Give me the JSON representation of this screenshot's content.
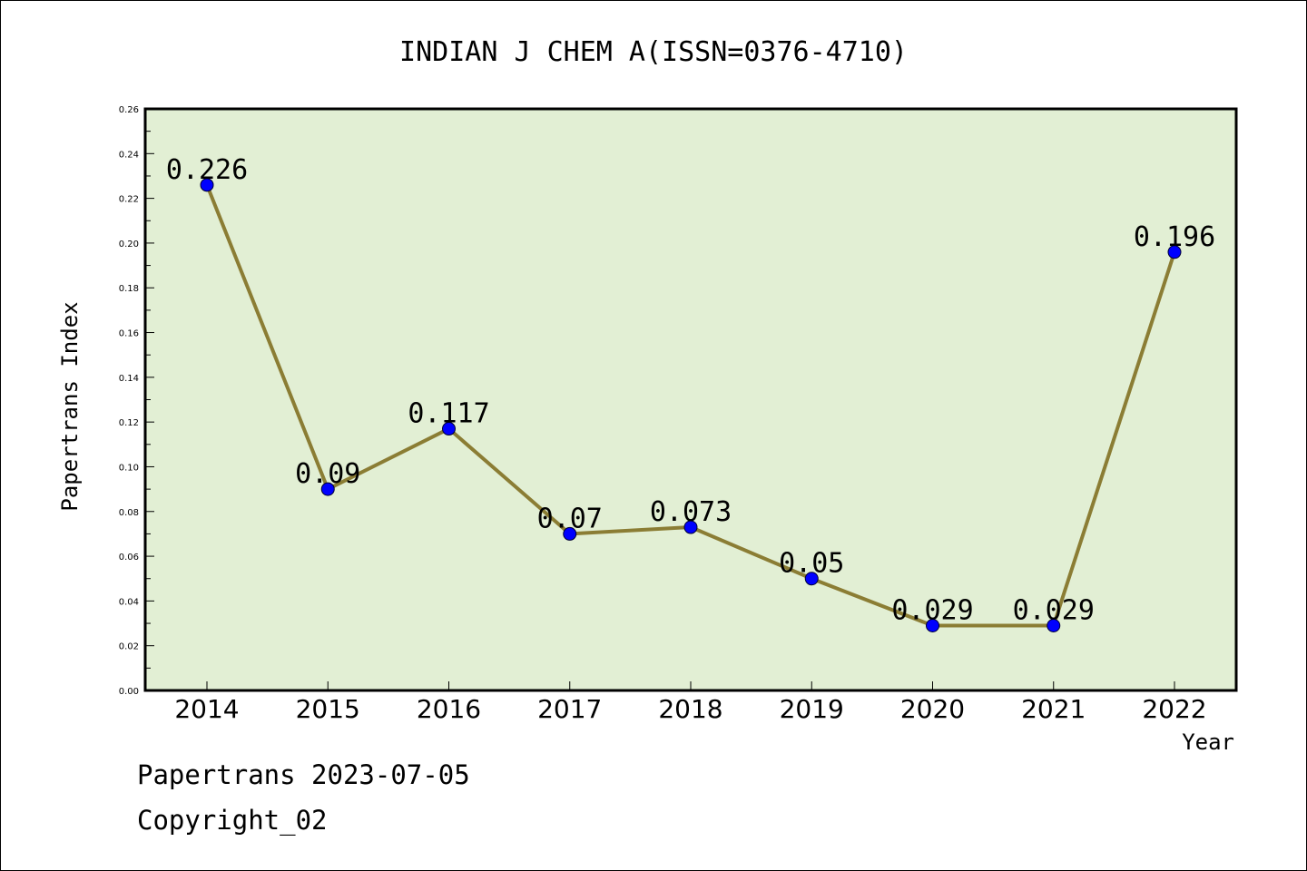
{
  "chart_data": {
    "type": "line",
    "title": "INDIAN J CHEM A(ISSN=0376-4710)",
    "xlabel": "Year",
    "ylabel": "Papertrans Index",
    "categories": [
      "2014",
      "2015",
      "2016",
      "2017",
      "2018",
      "2019",
      "2020",
      "2021",
      "2022"
    ],
    "series": [
      {
        "values": [
          0.226,
          0.09,
          0.117,
          0.07,
          0.073,
          0.05,
          0.029,
          0.029,
          0.196
        ],
        "data_labels": [
          "0.226",
          "0.09",
          "0.117",
          "0.07",
          "0.073",
          "0.05",
          "0.029",
          "0.029",
          "0.196"
        ]
      }
    ],
    "ylim": [
      0,
      0.26
    ],
    "yticks": [
      "0.00",
      "0.02",
      "0.04",
      "0.06",
      "0.08",
      "0.10",
      "0.12",
      "0.14",
      "0.16",
      "0.18",
      "0.20",
      "0.22",
      "0.24",
      "0.26"
    ],
    "grid": false,
    "colors": {
      "plot_background": "#e2efd4",
      "line": "#8b7d34",
      "marker": "#0000ff"
    }
  },
  "footer": {
    "line1": "Papertrans 2023-07-05",
    "line2": "Copyright_02"
  }
}
